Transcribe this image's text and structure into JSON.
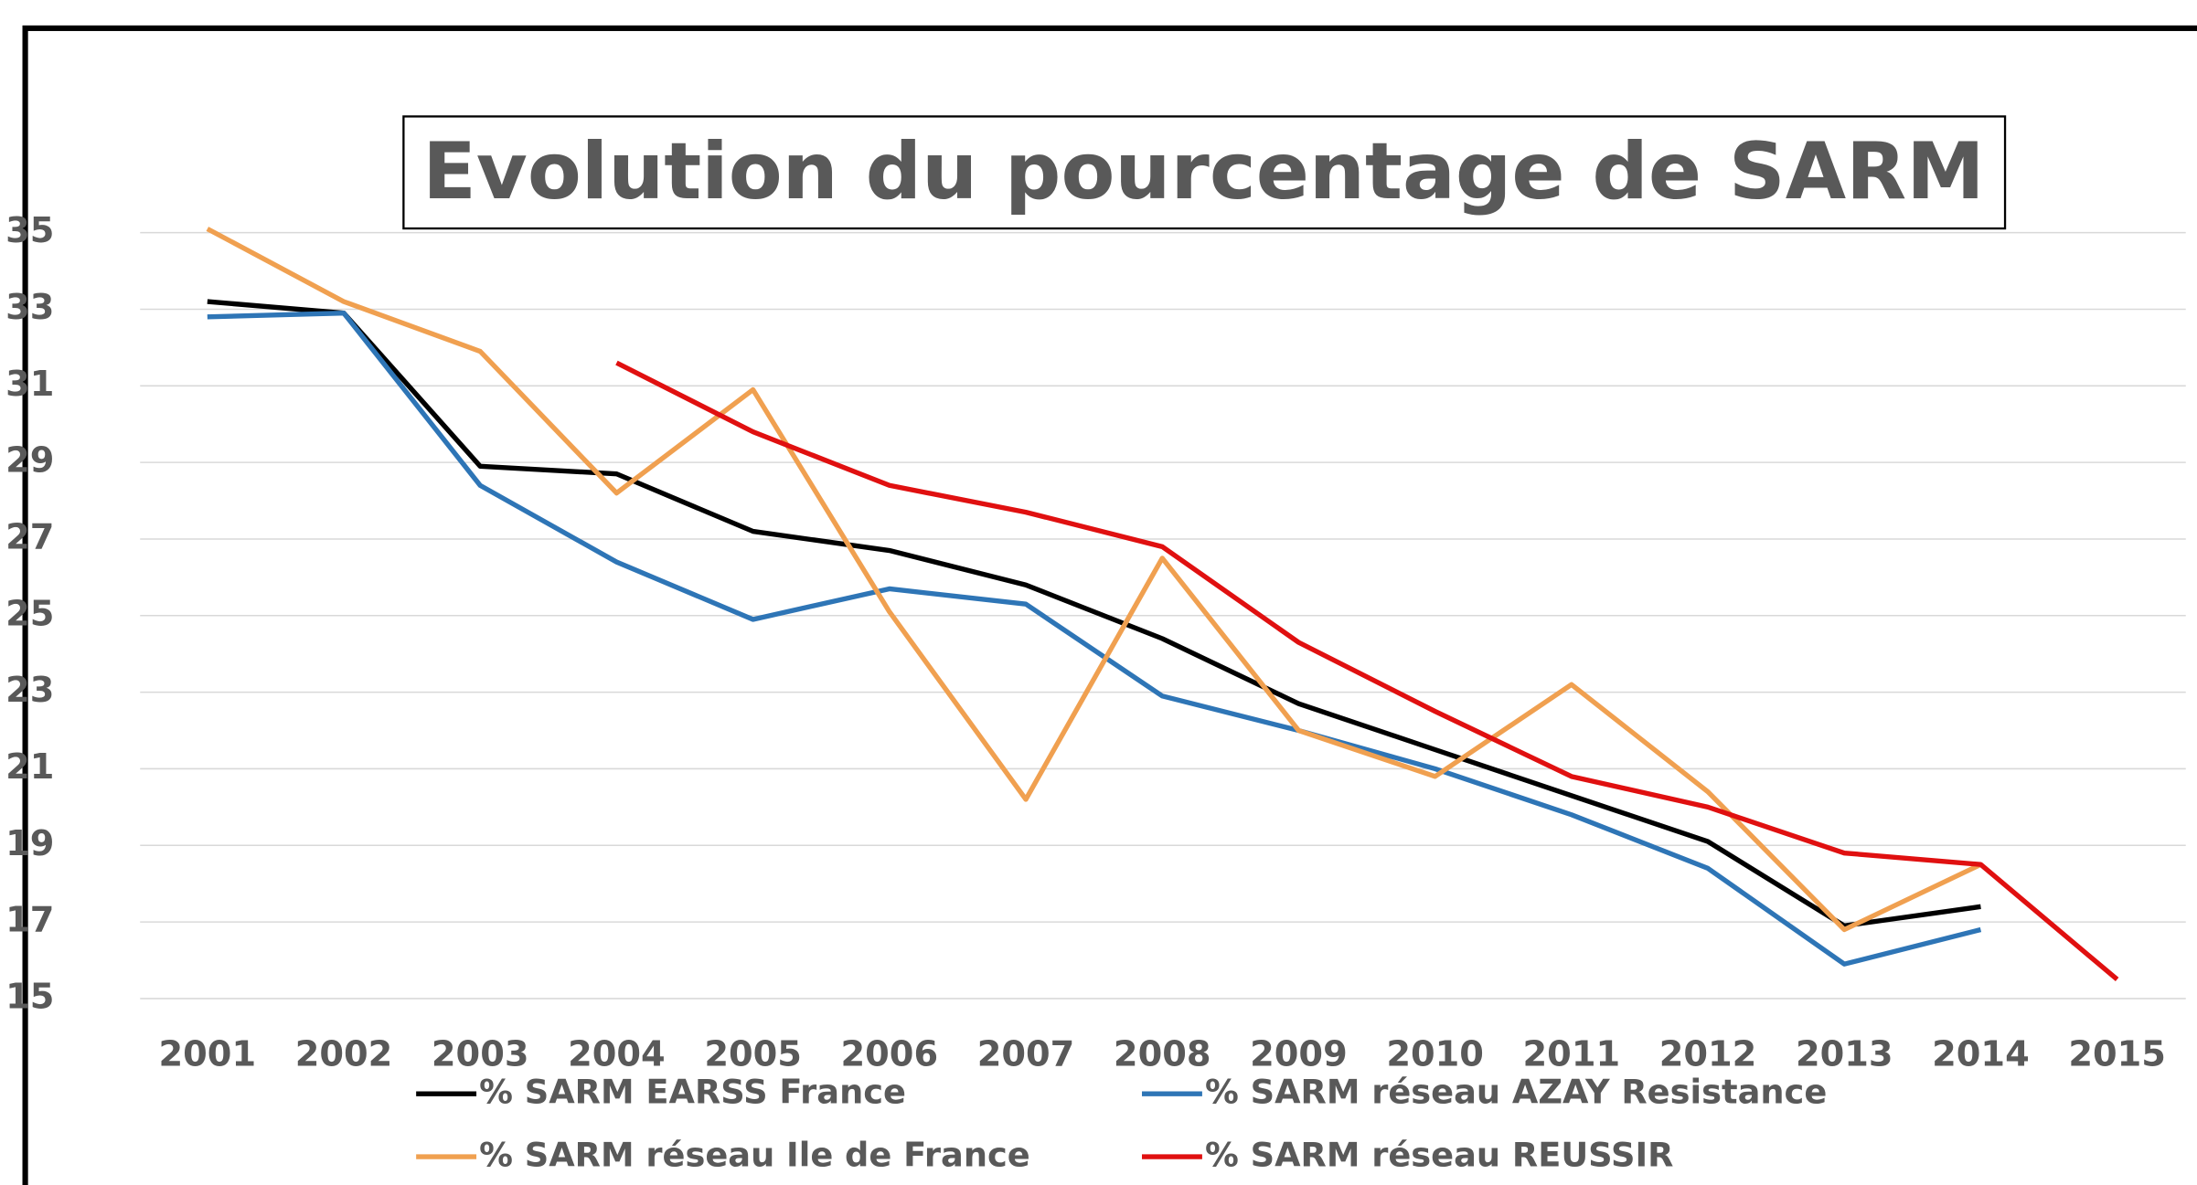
{
  "chart_data": {
    "type": "line",
    "title": "Evolution du pourcentage de SARM",
    "categories": [
      "2001",
      "2002",
      "2003",
      "2004",
      "2005",
      "2006",
      "2007",
      "2008",
      "2009",
      "2010",
      "2011",
      "2012",
      "2013",
      "2014",
      "2015"
    ],
    "series": [
      {
        "name": "% SARM EARSS France",
        "color": "#000000",
        "values": [
          33.2,
          32.9,
          28.9,
          28.7,
          27.2,
          26.7,
          25.8,
          24.4,
          22.7,
          21.5,
          20.3,
          19.1,
          16.9,
          17.4,
          null
        ]
      },
      {
        "name": "% SARM réseau AZAY Resistance",
        "color": "#2e75b6",
        "values": [
          32.8,
          32.9,
          28.4,
          26.4,
          24.9,
          25.7,
          25.3,
          22.9,
          22.0,
          21.0,
          19.8,
          18.4,
          15.9,
          16.8,
          null
        ]
      },
      {
        "name": "% SARM réseau Ile de France",
        "color": "#f0a050",
        "values": [
          35.1,
          33.2,
          31.9,
          28.2,
          30.9,
          25.1,
          20.2,
          26.5,
          22.0,
          20.8,
          23.2,
          20.4,
          16.8,
          18.5,
          null
        ]
      },
      {
        "name": "% SARM réseau REUSSIR",
        "color": "#e01010",
        "values": [
          null,
          null,
          null,
          31.6,
          29.8,
          28.4,
          27.7,
          26.8,
          24.3,
          22.5,
          20.8,
          20.0,
          18.8,
          18.5,
          15.5
        ]
      }
    ],
    "ylim": [
      15,
      35
    ],
    "yticks": [
      15,
      17,
      19,
      21,
      23,
      25,
      27,
      29,
      31,
      33,
      35
    ],
    "grid": true
  }
}
